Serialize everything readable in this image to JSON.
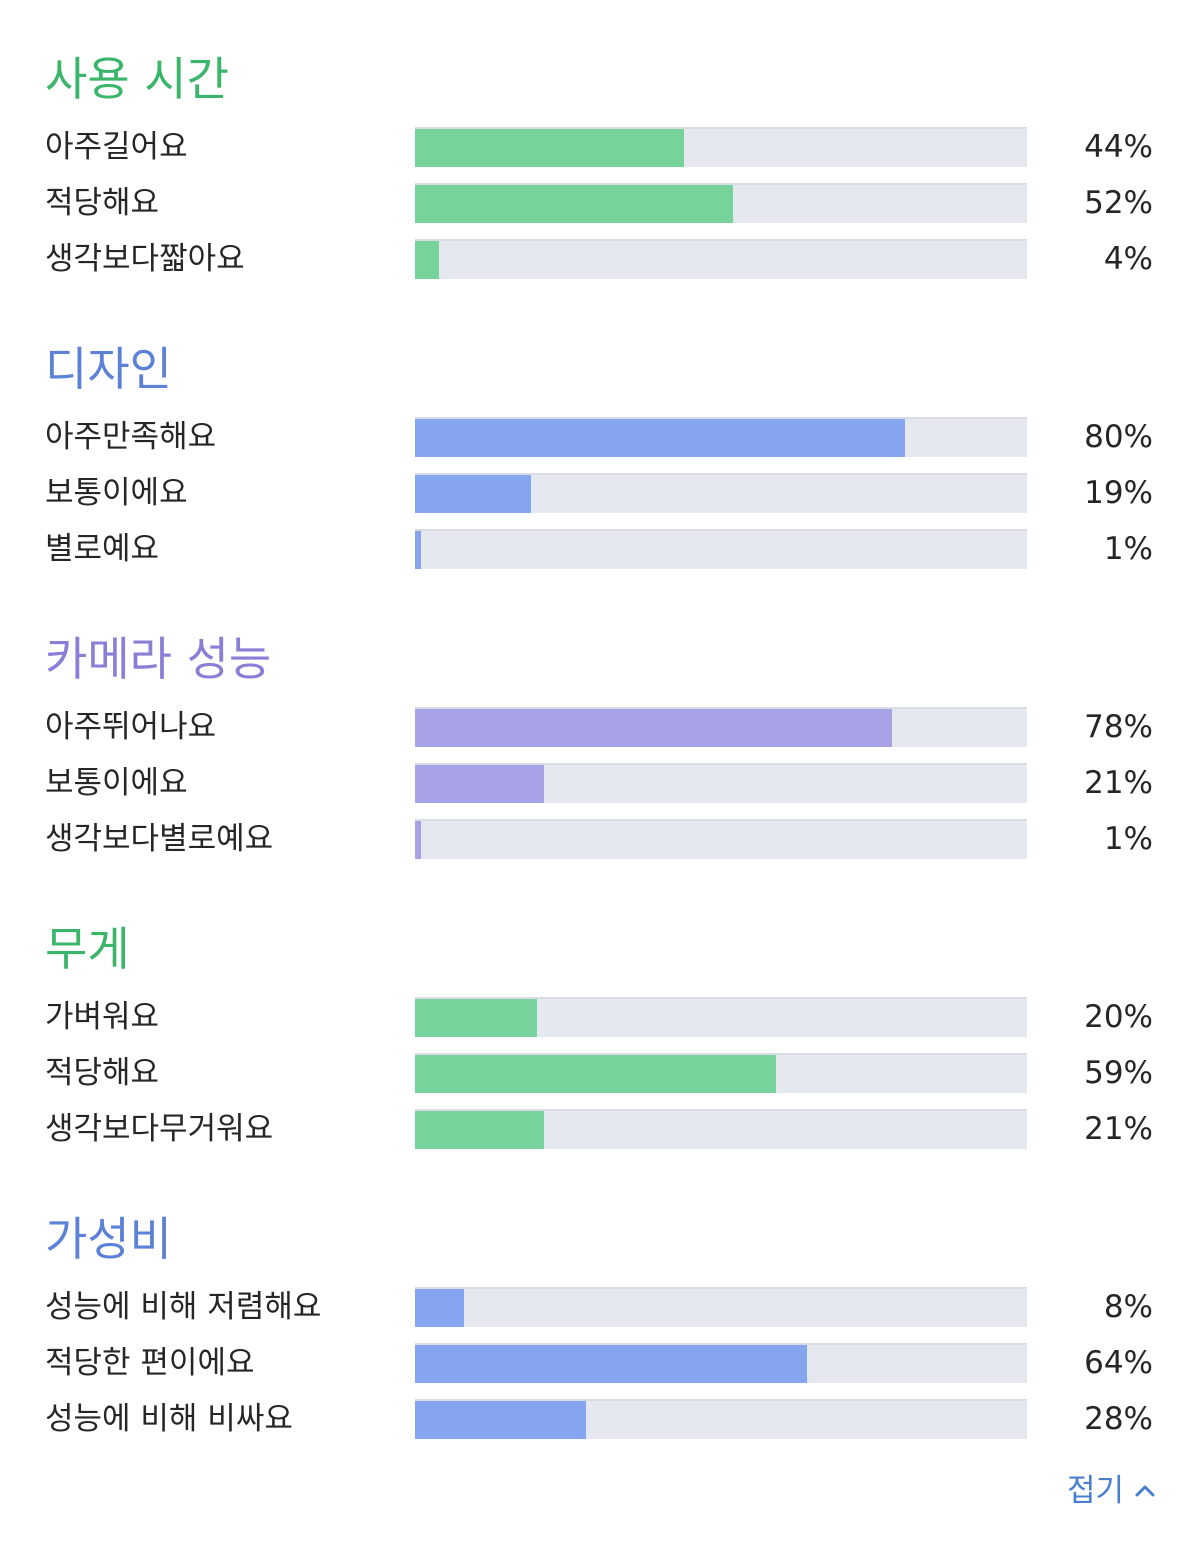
{
  "sections": [
    {
      "title": "사용 시간",
      "color": "#3ab56a",
      "bar_color": "#77d39c",
      "rows": [
        {
          "label": "아주길어요",
          "percent": 44,
          "value_text": "44%"
        },
        {
          "label": "적당해요",
          "percent": 52,
          "value_text": "52%"
        },
        {
          "label": "생각보다짧아요",
          "percent": 4,
          "value_text": "4%"
        }
      ]
    },
    {
      "title": "디자인",
      "color": "#5b82d6",
      "bar_color": "#85a5f0",
      "rows": [
        {
          "label": "아주만족해요",
          "percent": 80,
          "value_text": "80%"
        },
        {
          "label": "보통이에요",
          "percent": 19,
          "value_text": "19%"
        },
        {
          "label": "별로예요",
          "percent": 1,
          "value_text": "1%"
        }
      ]
    },
    {
      "title": "카메라 성능",
      "color": "#8a7fd6",
      "bar_color": "#a8a2e6",
      "rows": [
        {
          "label": "아주뛰어나요",
          "percent": 78,
          "value_text": "78%"
        },
        {
          "label": "보통이에요",
          "percent": 21,
          "value_text": "21%"
        },
        {
          "label": "생각보다별로예요",
          "percent": 1,
          "value_text": "1%"
        }
      ]
    },
    {
      "title": "무게",
      "color": "#3ab56a",
      "bar_color": "#77d39c",
      "rows": [
        {
          "label": "가벼워요",
          "percent": 20,
          "value_text": "20%"
        },
        {
          "label": "적당해요",
          "percent": 59,
          "value_text": "59%"
        },
        {
          "label": "생각보다무거워요",
          "percent": 21,
          "value_text": "21%"
        }
      ]
    },
    {
      "title": "가성비",
      "color": "#5b82d6",
      "bar_color": "#85a5f0",
      "rows": [
        {
          "label": "성능에 비해 저렴해요",
          "percent": 8,
          "value_text": "8%"
        },
        {
          "label": "적당한 편이에요",
          "percent": 64,
          "value_text": "64%"
        },
        {
          "label": "성능에 비해 비싸요",
          "percent": 28,
          "value_text": "28%"
        }
      ]
    }
  ],
  "collapse": {
    "label": "접기",
    "icon": "chevron-up-icon",
    "color": "#4a7fd0"
  }
}
